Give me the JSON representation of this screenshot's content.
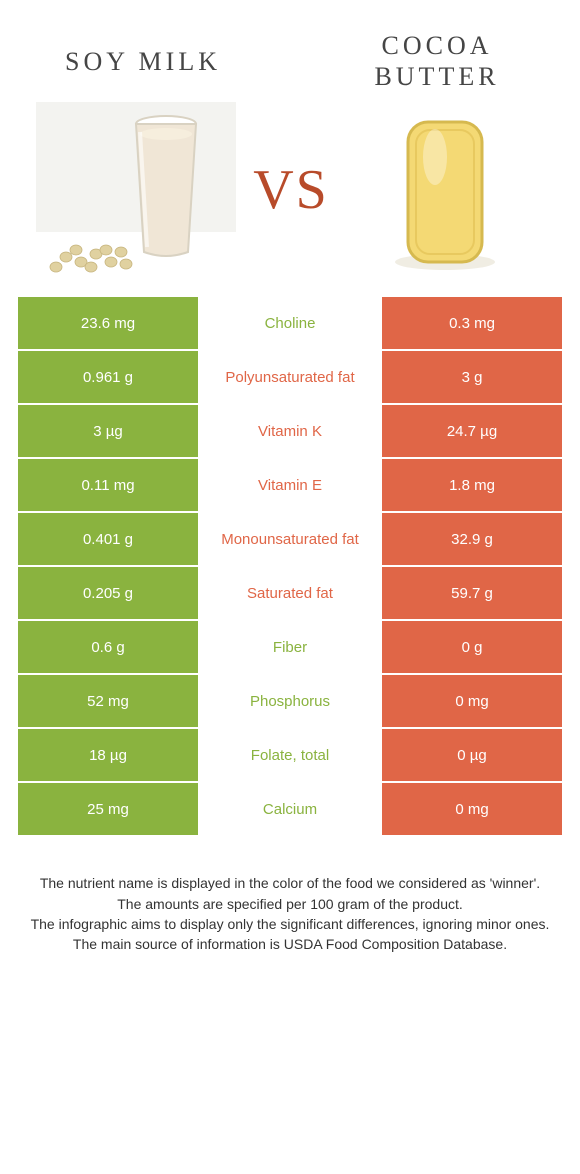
{
  "colors": {
    "green": "#8ab33f",
    "orange": "#e06647",
    "vs": "#b84b2a",
    "title": "#454545",
    "mid_green": "#8ab33f",
    "mid_orange": "#e06647",
    "glass_fill": "#f0e6d6",
    "glass_edge": "#d9d2c2",
    "bean": "#e0d1a0",
    "butter_fill": "#f4d974",
    "butter_edge": "#d6b94f",
    "butter_shadow": "#c7bfa3"
  },
  "header": {
    "left": "SOY MILK",
    "right": "COCOA BUTTER",
    "vs": "VS"
  },
  "table": {
    "rows": [
      {
        "left": "23.6 mg",
        "name": "Choline",
        "right": "0.3 mg",
        "winner": "left"
      },
      {
        "left": "0.961 g",
        "name": "Polyunsaturated fat",
        "right": "3 g",
        "winner": "right"
      },
      {
        "left": "3 µg",
        "name": "Vitamin K",
        "right": "24.7 µg",
        "winner": "right"
      },
      {
        "left": "0.11 mg",
        "name": "Vitamin E",
        "right": "1.8 mg",
        "winner": "right"
      },
      {
        "left": "0.401 g",
        "name": "Monounsaturated fat",
        "right": "32.9 g",
        "winner": "right"
      },
      {
        "left": "0.205 g",
        "name": "Saturated fat",
        "right": "59.7 g",
        "winner": "right"
      },
      {
        "left": "0.6 g",
        "name": "Fiber",
        "right": "0 g",
        "winner": "left"
      },
      {
        "left": "52 mg",
        "name": "Phosphorus",
        "right": "0 mg",
        "winner": "left"
      },
      {
        "left": "18 µg",
        "name": "Folate, total",
        "right": "0 µg",
        "winner": "left"
      },
      {
        "left": "25 mg",
        "name": "Calcium",
        "right": "0 mg",
        "winner": "left"
      }
    ]
  },
  "footer": {
    "line1": "The nutrient name is displayed in the color of the food we considered as 'winner'.",
    "line2": "The amounts are specified per 100 gram of the product.",
    "line3": "The infographic aims to display only the significant differences, ignoring minor ones.",
    "line4": "The main source of information is USDA Food Composition Database."
  }
}
